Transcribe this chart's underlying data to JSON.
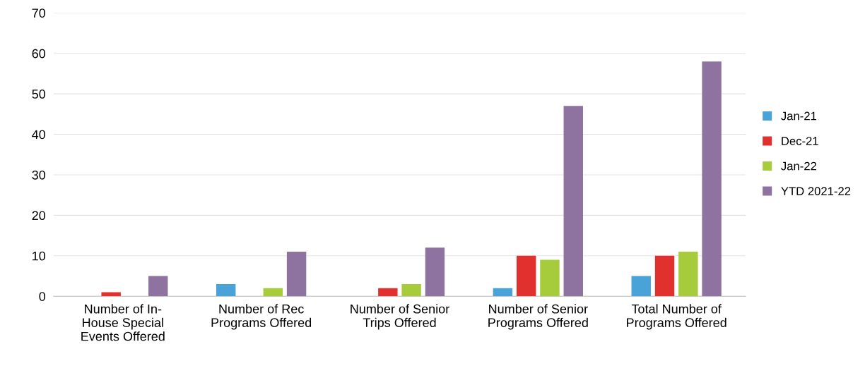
{
  "chart_data": {
    "type": "bar",
    "categories": [
      "Number of In-House Special Events Offered",
      "Number of Rec Programs Offered",
      "Number of Senior Trips Offered",
      "Number of Senior Programs Offered",
      "Total Number of Programs Offered"
    ],
    "series": [
      {
        "name": "Jan-21",
        "color": "#4aa3d8",
        "values": [
          0,
          3,
          0,
          2,
          5
        ]
      },
      {
        "name": "Dec-21",
        "color": "#e0312e",
        "values": [
          1,
          0,
          2,
          10,
          10
        ]
      },
      {
        "name": "Jan-22",
        "color": "#a6cc3c",
        "values": [
          0,
          2,
          3,
          9,
          11
        ]
      },
      {
        "name": "YTD 2021-22",
        "color": "#8e73a0",
        "values": [
          5,
          11,
          12,
          47,
          58
        ]
      }
    ],
    "ylim": [
      0,
      70
    ],
    "yticks": [
      0,
      10,
      20,
      30,
      40,
      50,
      60,
      70
    ],
    "grid": "y",
    "legend": "right"
  }
}
